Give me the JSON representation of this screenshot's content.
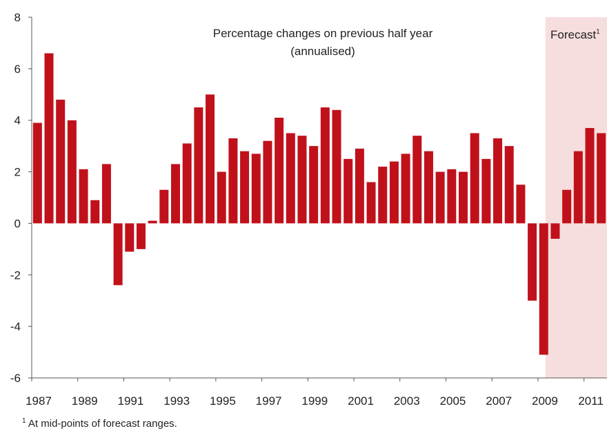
{
  "chart_data": {
    "type": "bar",
    "title": "Percentage changes on previous half year",
    "subtitle": "(annualised)",
    "ylim": [
      -6,
      8
    ],
    "yticks": [
      -6,
      -4,
      -2,
      0,
      2,
      4,
      6,
      8
    ],
    "xtick_labels": [
      "1987",
      "1989",
      "1991",
      "1993",
      "1995",
      "1997",
      "1999",
      "2001",
      "2003",
      "2005",
      "2007",
      "2009",
      "2011"
    ],
    "periods": [
      "1987 H1",
      "1987 H2",
      "1988 H1",
      "1988 H2",
      "1989 H1",
      "1989 H2",
      "1990 H1",
      "1990 H2",
      "1991 H1",
      "1991 H2",
      "1992 H1",
      "1992 H2",
      "1993 H1",
      "1993 H2",
      "1994 H1",
      "1994 H2",
      "1995 H1",
      "1995 H2",
      "1996 H1",
      "1996 H2",
      "1997 H1",
      "1997 H2",
      "1998 H1",
      "1998 H2",
      "1999 H1",
      "1999 H2",
      "2000 H1",
      "2000 H2",
      "2001 H1",
      "2001 H2",
      "2002 H1",
      "2002 H2",
      "2003 H1",
      "2003 H2",
      "2004 H1",
      "2004 H2",
      "2005 H1",
      "2005 H2",
      "2006 H1",
      "2006 H2",
      "2007 H1",
      "2007 H2",
      "2008 H1",
      "2008 H2",
      "2009 H1",
      "2009 H2",
      "2010 H1",
      "2010 H2",
      "2011 H1",
      "2011 H2"
    ],
    "values": [
      3.9,
      6.6,
      4.8,
      4.0,
      2.1,
      0.9,
      2.3,
      -2.4,
      -1.1,
      -1.0,
      0.1,
      1.3,
      2.3,
      3.1,
      4.5,
      5.0,
      2.0,
      3.3,
      2.8,
      2.7,
      3.2,
      4.1,
      3.5,
      3.4,
      3.0,
      4.5,
      4.4,
      2.5,
      2.9,
      1.6,
      2.2,
      2.4,
      2.7,
      3.4,
      2.8,
      2.0,
      2.1,
      2.0,
      3.5,
      2.5,
      3.3,
      3.0,
      1.5,
      -3.0,
      -5.1,
      -0.6,
      1.3,
      2.8,
      3.7,
      3.5
    ],
    "forecast_label": "Forecast",
    "forecast_marker": "1",
    "forecast_start_period": "2009 H2",
    "bar_color": "#c0111b",
    "forecast_shade_color": "#f7dede",
    "grid": false,
    "legend": "none"
  },
  "footnote": {
    "marker": "1",
    "text": "At mid-points of forecast ranges."
  }
}
